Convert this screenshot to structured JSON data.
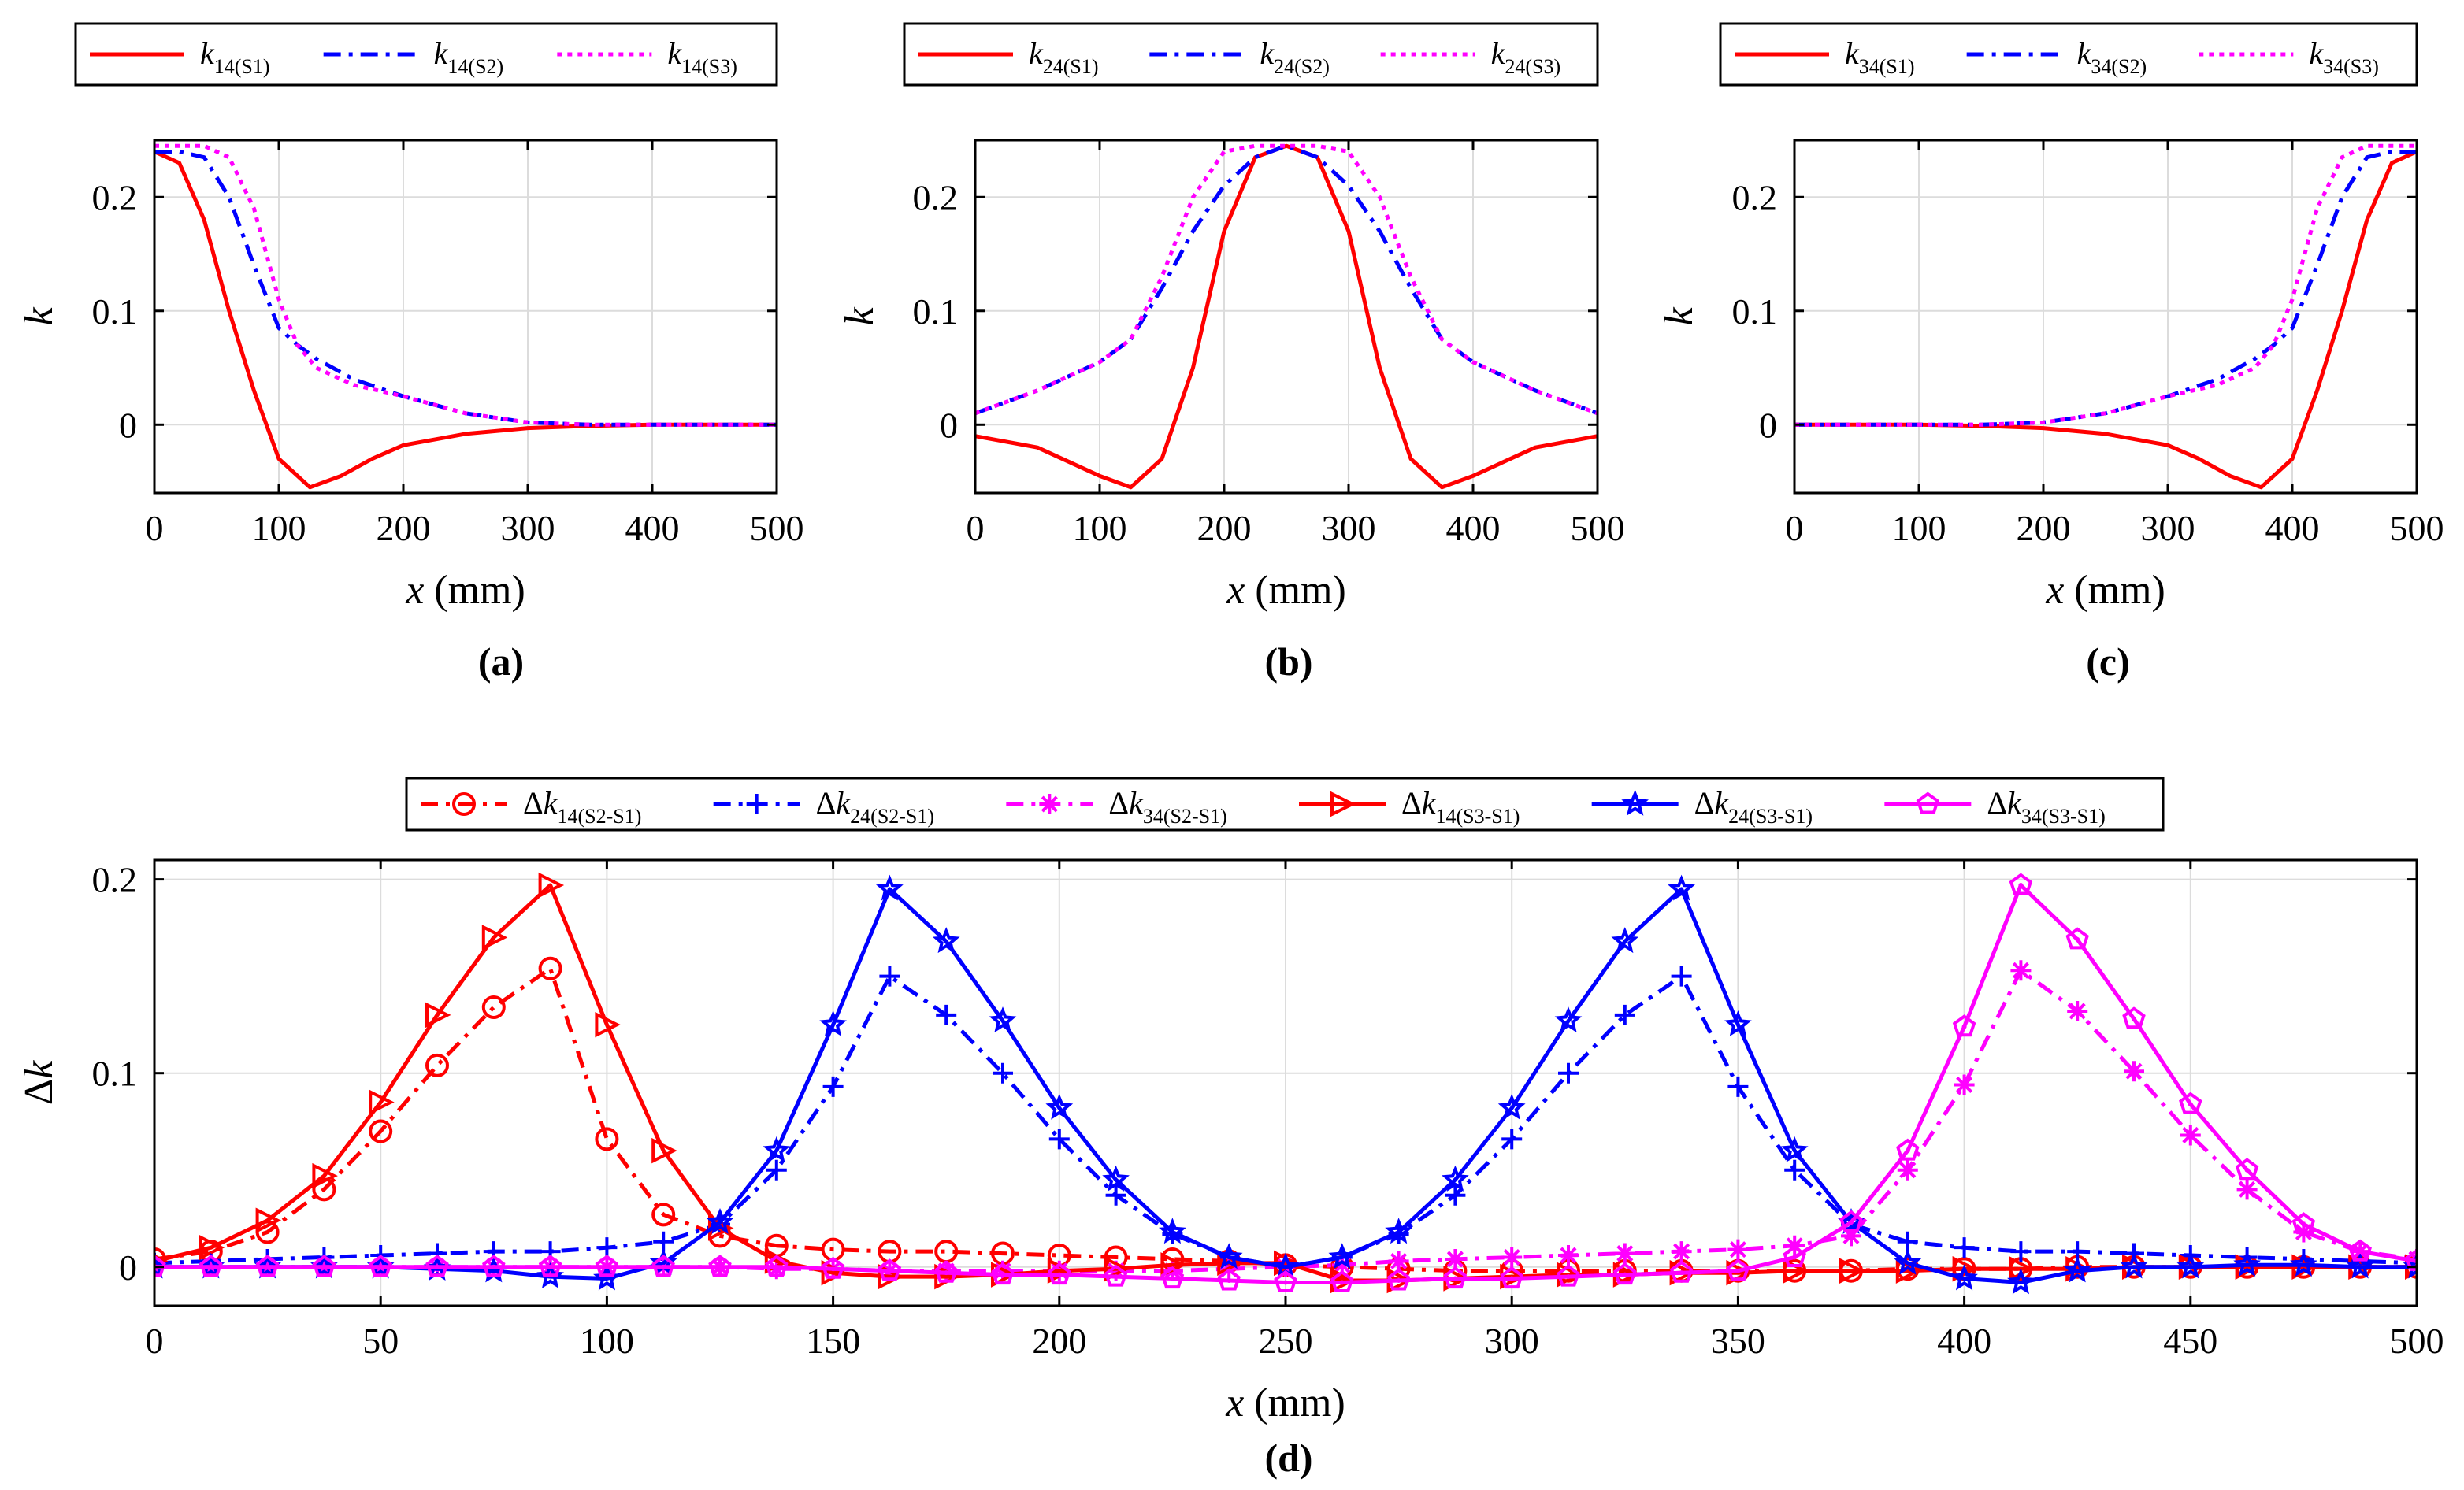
{
  "chart_data": [
    {
      "type": "line",
      "id": "a",
      "panel_label": "(a)",
      "xlabel": "x (mm)",
      "ylabel": "k",
      "xlim": [
        0,
        500
      ],
      "ylim": [
        -0.06,
        0.25
      ],
      "xticks": [
        0,
        100,
        200,
        300,
        400,
        500
      ],
      "xtick_labels": [
        "0",
        "100",
        "200",
        "300",
        "400",
        "500"
      ],
      "yticks": [
        0,
        0.1,
        0.2
      ],
      "ytick_labels": [
        "0",
        "0.1",
        "0.2"
      ],
      "grid": true,
      "legend_position": "top",
      "series": [
        {
          "name": "k14(S1)",
          "sym": "k",
          "sub": "14(S1)",
          "color": "#ff0000",
          "dash": "solid",
          "x": [
            0,
            20,
            40,
            60,
            80,
            100,
            125,
            150,
            175,
            200,
            250,
            300,
            350,
            400,
            450,
            500
          ],
          "y": [
            0.24,
            0.23,
            0.18,
            0.1,
            0.03,
            -0.03,
            -0.055,
            -0.045,
            -0.03,
            -0.018,
            -0.008,
            -0.003,
            -0.001,
            0,
            0,
            0
          ]
        },
        {
          "name": "k14(S2)",
          "sym": "k",
          "sub": "14(S2)",
          "color": "#0000ff",
          "dash": "dashdot",
          "x": [
            0,
            20,
            40,
            60,
            80,
            100,
            115,
            130,
            160,
            200,
            250,
            300,
            350,
            400,
            450,
            500
          ],
          "y": [
            0.24,
            0.24,
            0.235,
            0.2,
            0.14,
            0.085,
            0.07,
            0.058,
            0.04,
            0.025,
            0.01,
            0.002,
            0,
            0,
            0,
            0
          ]
        },
        {
          "name": "k14(S3)",
          "sym": "k",
          "sub": "14(S3)",
          "color": "#ff00ff",
          "dash": "dotted",
          "x": [
            0,
            20,
            40,
            60,
            80,
            100,
            115,
            130,
            160,
            200,
            250,
            300,
            350,
            400,
            450,
            500
          ],
          "y": [
            0.245,
            0.245,
            0.245,
            0.235,
            0.19,
            0.11,
            0.07,
            0.05,
            0.035,
            0.025,
            0.01,
            0.002,
            0,
            0,
            0,
            0
          ]
        }
      ]
    },
    {
      "type": "line",
      "id": "b",
      "panel_label": "(b)",
      "xlabel": "x (mm)",
      "ylabel": "k",
      "xlim": [
        0,
        500
      ],
      "ylim": [
        -0.06,
        0.25
      ],
      "xticks": [
        0,
        100,
        200,
        300,
        400,
        500
      ],
      "xtick_labels": [
        "0",
        "100",
        "200",
        "300",
        "400",
        "500"
      ],
      "yticks": [
        0,
        0.1,
        0.2
      ],
      "ytick_labels": [
        "0",
        "0.1",
        "0.2"
      ],
      "grid": true,
      "legend_position": "top",
      "series": [
        {
          "name": "k24(S1)",
          "sym": "k",
          "sub": "24(S1)",
          "color": "#ff0000",
          "dash": "solid",
          "x": [
            0,
            50,
            100,
            125,
            150,
            175,
            200,
            225,
            250,
            275,
            300,
            325,
            350,
            375,
            400,
            450,
            500
          ],
          "y": [
            -0.01,
            -0.02,
            -0.045,
            -0.055,
            -0.03,
            0.05,
            0.17,
            0.235,
            0.245,
            0.235,
            0.17,
            0.05,
            -0.03,
            -0.055,
            -0.045,
            -0.02,
            -0.01
          ]
        },
        {
          "name": "k24(S2)",
          "sym": "k",
          "sub": "24(S2)",
          "color": "#0000ff",
          "dash": "dashdot",
          "x": [
            0,
            50,
            100,
            125,
            150,
            175,
            200,
            225,
            250,
            275,
            300,
            325,
            350,
            375,
            400,
            450,
            500
          ],
          "y": [
            0.01,
            0.03,
            0.055,
            0.075,
            0.12,
            0.17,
            0.21,
            0.235,
            0.245,
            0.235,
            0.21,
            0.17,
            0.12,
            0.075,
            0.055,
            0.03,
            0.01
          ]
        },
        {
          "name": "k24(S3)",
          "sym": "k",
          "sub": "24(S3)",
          "color": "#ff00ff",
          "dash": "dotted",
          "x": [
            0,
            50,
            100,
            125,
            150,
            175,
            200,
            225,
            250,
            275,
            300,
            325,
            350,
            375,
            400,
            450,
            500
          ],
          "y": [
            0.01,
            0.03,
            0.055,
            0.075,
            0.13,
            0.2,
            0.24,
            0.245,
            0.245,
            0.245,
            0.24,
            0.2,
            0.13,
            0.075,
            0.055,
            0.03,
            0.01
          ]
        }
      ]
    },
    {
      "type": "line",
      "id": "c",
      "panel_label": "(c)",
      "xlabel": "x (mm)",
      "ylabel": "k",
      "xlim": [
        0,
        500
      ],
      "ylim": [
        -0.06,
        0.25
      ],
      "xticks": [
        0,
        100,
        200,
        300,
        400,
        500
      ],
      "xtick_labels": [
        "0",
        "100",
        "200",
        "300",
        "400",
        "500"
      ],
      "yticks": [
        0,
        0.1,
        0.2
      ],
      "ytick_labels": [
        "0",
        "0.1",
        "0.2"
      ],
      "grid": true,
      "legend_position": "top",
      "series": [
        {
          "name": "k34(S1)",
          "sym": "k",
          "sub": "34(S1)",
          "color": "#ff0000",
          "dash": "solid",
          "x": [
            0,
            50,
            100,
            150,
            200,
            250,
            300,
            325,
            350,
            375,
            400,
            420,
            440,
            460,
            480,
            500
          ],
          "y": [
            0,
            0,
            0,
            -0.001,
            -0.003,
            -0.008,
            -0.018,
            -0.03,
            -0.045,
            -0.055,
            -0.03,
            0.03,
            0.1,
            0.18,
            0.23,
            0.24
          ]
        },
        {
          "name": "k34(S2)",
          "sym": "k",
          "sub": "34(S2)",
          "color": "#0000ff",
          "dash": "dashdot",
          "x": [
            0,
            50,
            100,
            150,
            200,
            250,
            300,
            340,
            370,
            385,
            400,
            420,
            440,
            460,
            480,
            500
          ],
          "y": [
            0,
            0,
            0,
            0,
            0.002,
            0.01,
            0.025,
            0.04,
            0.058,
            0.07,
            0.085,
            0.14,
            0.2,
            0.235,
            0.24,
            0.24
          ]
        },
        {
          "name": "k34(S3)",
          "sym": "k",
          "sub": "34(S3)",
          "color": "#ff00ff",
          "dash": "dotted",
          "x": [
            0,
            50,
            100,
            150,
            200,
            250,
            300,
            340,
            370,
            385,
            400,
            420,
            440,
            460,
            480,
            500
          ],
          "y": [
            0,
            0,
            0,
            0,
            0.002,
            0.01,
            0.025,
            0.035,
            0.05,
            0.07,
            0.11,
            0.19,
            0.235,
            0.245,
            0.245,
            0.245
          ]
        }
      ]
    },
    {
      "type": "line",
      "id": "d",
      "panel_label": "(d)",
      "xlabel": "x (mm)",
      "ylabel": "Δk",
      "xlim": [
        0,
        500
      ],
      "ylim": [
        -0.02,
        0.21
      ],
      "xticks": [
        0,
        50,
        100,
        150,
        200,
        250,
        300,
        350,
        400,
        450,
        500
      ],
      "xtick_labels": [
        "0",
        "50",
        "100",
        "150",
        "200",
        "250",
        "300",
        "350",
        "400",
        "450",
        "500"
      ],
      "yticks": [
        0,
        0.1,
        0.2
      ],
      "ytick_labels": [
        "0",
        "0.1",
        "0.2"
      ],
      "grid": true,
      "legend_position": "top",
      "x": [
        0,
        12.5,
        25,
        37.5,
        50,
        62.5,
        75,
        87.5,
        100,
        112.5,
        125,
        137.5,
        150,
        162.5,
        175,
        187.5,
        200,
        212.5,
        225,
        237.5,
        250,
        262.5,
        275,
        287.5,
        300,
        312.5,
        325,
        337.5,
        350,
        362.5,
        375,
        387.5,
        400,
        412.5,
        425,
        437.5,
        450,
        462.5,
        475,
        487.5,
        500
      ],
      "series": [
        {
          "name": "Δk14(S2-S1)",
          "sym": "Δk",
          "sub": "14(S2-S1)",
          "color": "#ff0000",
          "dash": "dashdot",
          "marker": "circle",
          "y": [
            0.004,
            0.008,
            0.018,
            0.04,
            0.07,
            0.104,
            0.134,
            0.154,
            0.066,
            0.027,
            0.016,
            0.011,
            0.009,
            0.008,
            0.008,
            0.007,
            0.006,
            0.005,
            0.004,
            0.003,
            0.001,
            0.0,
            -0.001,
            -0.002,
            -0.002,
            -0.002,
            -0.002,
            -0.002,
            -0.002,
            -0.002,
            -0.002,
            -0.001,
            -0.001,
            -0.001,
            0,
            0,
            0,
            0,
            0,
            0,
            0
          ]
        },
        {
          "name": "Δk24(S2-S1)",
          "sym": "Δk",
          "sub": "24(S2-S1)",
          "color": "#0000ff",
          "dash": "dashdot",
          "marker": "plus",
          "y": [
            0.002,
            0.003,
            0.004,
            0.005,
            0.006,
            0.007,
            0.008,
            0.008,
            0.01,
            0.013,
            0.022,
            0.05,
            0.093,
            0.15,
            0.13,
            0.1,
            0.066,
            0.037,
            0.017,
            0.005,
            0,
            0.005,
            0.017,
            0.037,
            0.066,
            0.1,
            0.13,
            0.15,
            0.093,
            0.05,
            0.022,
            0.013,
            0.01,
            0.008,
            0.008,
            0.007,
            0.006,
            0.005,
            0.004,
            0.003,
            0.002
          ]
        },
        {
          "name": "Δk34(S2-S1)",
          "sym": "Δk",
          "sub": "34(S2-S1)",
          "color": "#ff00ff",
          "dash": "dashdot",
          "marker": "asterisk",
          "y": [
            0,
            0,
            0,
            0,
            0,
            0,
            0,
            0,
            0,
            0,
            0,
            -0.001,
            -0.001,
            -0.002,
            -0.002,
            -0.002,
            -0.002,
            -0.002,
            -0.002,
            -0.001,
            0,
            0.001,
            0.003,
            0.004,
            0.005,
            0.006,
            0.007,
            0.008,
            0.009,
            0.011,
            0.016,
            0.05,
            0.094,
            0.153,
            0.132,
            0.101,
            0.068,
            0.04,
            0.018,
            0.008,
            0.004
          ]
        },
        {
          "name": "Δk14(S3-S1)",
          "sym": "Δk",
          "sub": "14(S3-S1)",
          "color": "#ff0000",
          "dash": "solid",
          "marker": "triangle-right",
          "y": [
            0.003,
            0.01,
            0.024,
            0.047,
            0.085,
            0.13,
            0.17,
            0.197,
            0.125,
            0.06,
            0.02,
            0.003,
            -0.003,
            -0.005,
            -0.005,
            -0.004,
            -0.002,
            -0.001,
            0.001,
            0.002,
            0.002,
            -0.007,
            -0.007,
            -0.006,
            -0.005,
            -0.004,
            -0.004,
            -0.003,
            -0.003,
            -0.002,
            -0.002,
            -0.002,
            -0.001,
            -0.001,
            -0.001,
            0,
            0,
            0,
            0,
            0,
            0
          ]
        },
        {
          "name": "Δk24(S3-S1)",
          "sym": "Δk",
          "sub": "24(S3-S1)",
          "color": "#0000ff",
          "dash": "solid",
          "marker": "star",
          "y": [
            0,
            0,
            0,
            0,
            0,
            -0.001,
            -0.002,
            -0.005,
            -0.006,
            0.002,
            0.023,
            0.06,
            0.125,
            0.195,
            0.168,
            0.127,
            0.082,
            0.045,
            0.018,
            0.005,
            0,
            0.005,
            0.018,
            0.045,
            0.082,
            0.127,
            0.168,
            0.195,
            0.125,
            0.06,
            0.023,
            0.002,
            -0.006,
            -0.008,
            -0.002,
            0,
            0,
            0.001,
            0.001,
            0,
            0
          ]
        },
        {
          "name": "Δk34(S3-S1)",
          "sym": "Δk",
          "sub": "34(S3-S1)",
          "color": "#ff00ff",
          "dash": "solid",
          "marker": "pentagon",
          "y": [
            0,
            0,
            0,
            0,
            0,
            0,
            0,
            0,
            0,
            0,
            0,
            0,
            -0.001,
            -0.002,
            -0.003,
            -0.004,
            -0.004,
            -0.005,
            -0.006,
            -0.007,
            -0.008,
            -0.008,
            -0.007,
            -0.006,
            -0.006,
            -0.005,
            -0.004,
            -0.003,
            -0.002,
            0.005,
            0.023,
            0.06,
            0.124,
            0.197,
            0.169,
            0.128,
            0.084,
            0.05,
            0.022,
            0.008,
            0.003
          ]
        }
      ]
    }
  ]
}
